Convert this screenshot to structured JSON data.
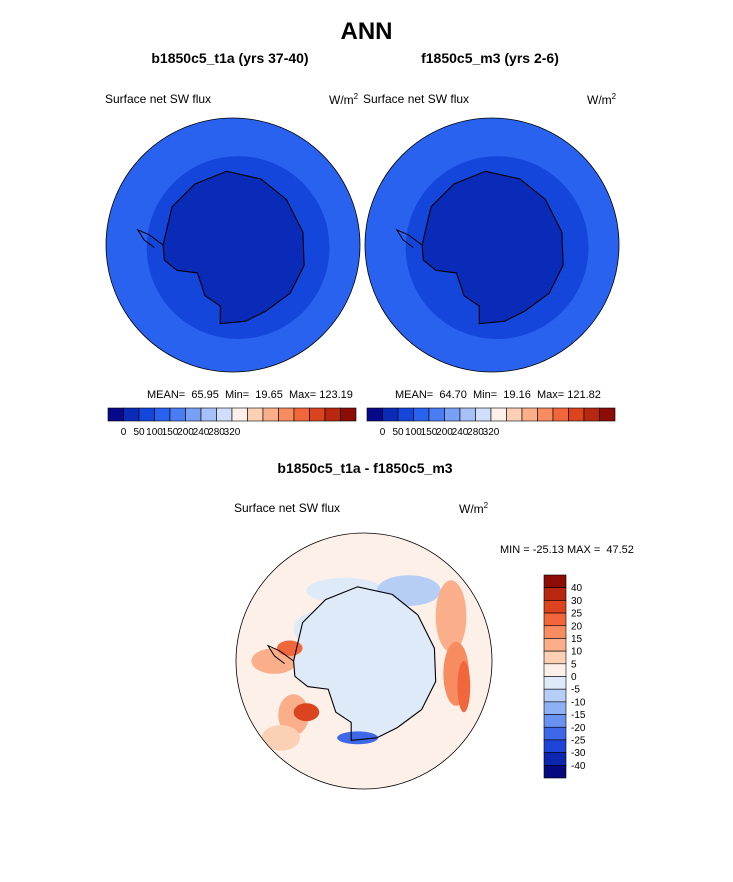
{
  "page_title": "ANN",
  "top_panels": [
    {
      "title": "b1850c5_t1a (yrs 37-40)",
      "variable": "Surface net SW flux",
      "units_base": "W/m",
      "units_exp": "2",
      "stats": {
        "mean_label": "MEAN=",
        "mean": "65.95",
        "min_label": "Min=",
        "min": "19.65",
        "max_label": "Max=",
        "max": "123.19"
      }
    },
    {
      "title": "f1850c5_m3 (yrs 2-6)",
      "variable": "Surface net SW flux",
      "units_base": "W/m",
      "units_exp": "2",
      "stats": {
        "mean_label": "MEAN=",
        "mean": "64.70",
        "min_label": "Min=",
        "min": "19.16",
        "max_label": "Max=",
        "max": "121.82"
      }
    }
  ],
  "diff_panel": {
    "title": "b1850c5_t1a - f1850c5_m3",
    "variable": "Surface net SW flux",
    "units_base": "W/m",
    "units_exp": "2",
    "minmax_label": "MIN = -25.13 MAX =  47.52"
  },
  "chart_data": [
    {
      "type": "heatmap",
      "projection": "south-polar-stereographic",
      "title": "b1850c5_t1a (yrs 37-40)",
      "variable": "Surface net SW flux",
      "mean": 65.95,
      "min": 19.65,
      "max": 123.19,
      "colorbar": {
        "orientation": "horizontal",
        "tick_labels": [
          "0",
          "50",
          "100",
          "150",
          "200",
          "240",
          "280",
          "320"
        ],
        "colors": [
          "#08088a",
          "#0a2ab8",
          "#1446dc",
          "#2a62f0",
          "#4c7cf2",
          "#7aa0f6",
          "#a6c0f8",
          "#cfdefa",
          "#fdf0e8",
          "#fcd0b4",
          "#faae8a",
          "#f78c60",
          "#f2663c",
          "#dc4420",
          "#b82810",
          "#8c0c06"
        ]
      }
    },
    {
      "type": "heatmap",
      "projection": "south-polar-stereographic",
      "title": "f1850c5_m3 (yrs 2-6)",
      "variable": "Surface net SW flux",
      "mean": 64.7,
      "min": 19.16,
      "max": 121.82,
      "colorbar": {
        "orientation": "horizontal",
        "tick_labels": [
          "0",
          "50",
          "100",
          "150",
          "200",
          "240",
          "280",
          "320"
        ],
        "colors": [
          "#08088a",
          "#0a2ab8",
          "#1446dc",
          "#2a62f0",
          "#4c7cf2",
          "#7aa0f6",
          "#a6c0f8",
          "#cfdefa",
          "#fdf0e8",
          "#fcd0b4",
          "#faae8a",
          "#f78c60",
          "#f2663c",
          "#dc4420",
          "#b82810",
          "#8c0c06"
        ]
      }
    },
    {
      "type": "heatmap",
      "projection": "south-polar-stereographic",
      "title": "b1850c5_t1a - f1850c5_m3",
      "variable": "Surface net SW flux",
      "min": -25.13,
      "max": 47.52,
      "colorbar": {
        "orientation": "vertical",
        "tick_labels": [
          "40",
          "30",
          "25",
          "20",
          "15",
          "10",
          "5",
          "0",
          "-5",
          "-10",
          "-15",
          "-20",
          "-25",
          "-30",
          "-40"
        ],
        "colors": [
          "#8c0c06",
          "#b82810",
          "#dc4420",
          "#f2663c",
          "#f78c60",
          "#faae8a",
          "#fcd0b4",
          "#fdf0e8",
          "#dfeaf8",
          "#b6cdf6",
          "#8eb0f4",
          "#6a92f0",
          "#3e68e8",
          "#1e44d8",
          "#0c26b0",
          "#06087e"
        ]
      }
    }
  ]
}
